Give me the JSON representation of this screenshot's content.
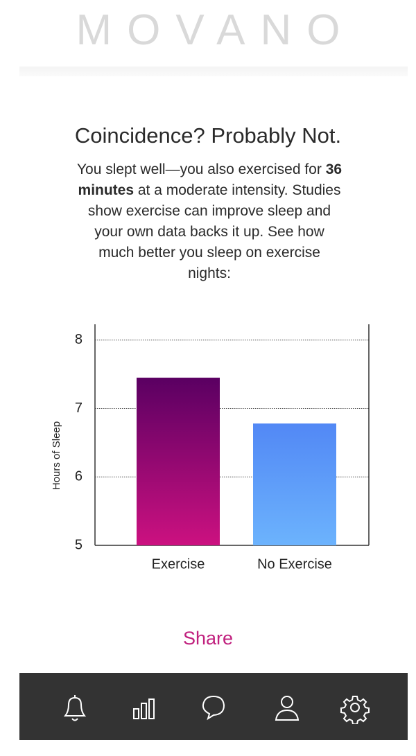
{
  "header": {
    "logo": "MOVANO"
  },
  "title": "Coincidence? Probably Not.",
  "body": {
    "intro": "You slept well—you also exercised for",
    "bold": "36 minutes",
    "rest": "at a moderate intensity. Studies show exercise can improve sleep and your own data backs it up. See how much better you sleep on exercise nights:"
  },
  "chart_data": {
    "type": "bar",
    "y_label": "Hours of Sleep",
    "categories": [
      "Exercise",
      "No Exercise"
    ],
    "values": [
      7.45,
      6.78
    ],
    "gradients": [
      [
        "#5a0062",
        "#cc1180"
      ],
      [
        "#5288f5",
        "#6cb3fd"
      ]
    ],
    "ylim": [
      5,
      8.23
    ],
    "yticks": [
      5,
      6,
      7,
      8
    ],
    "grid": true
  },
  "share": "Share"
}
